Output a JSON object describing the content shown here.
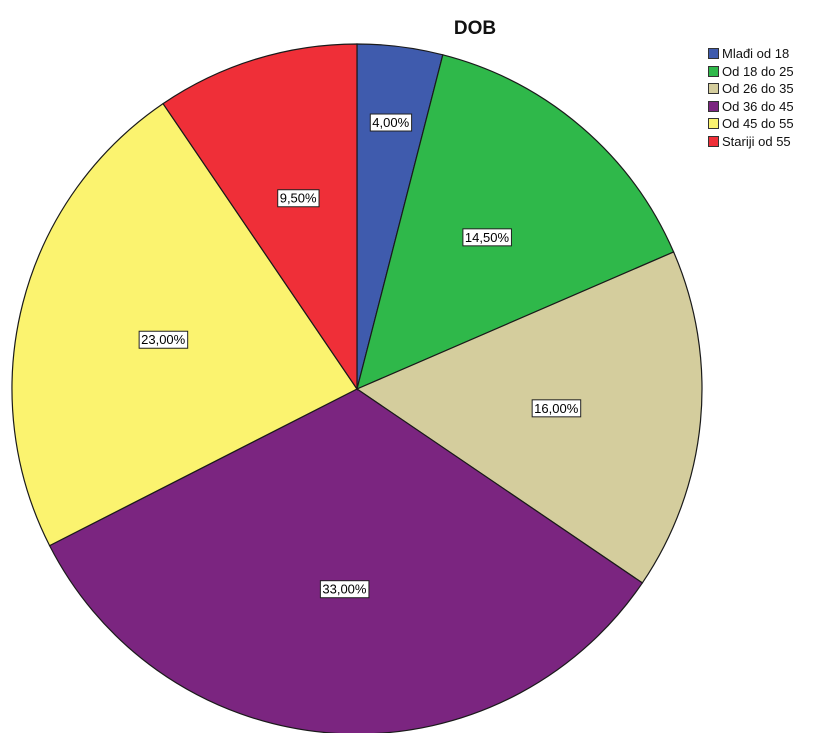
{
  "chart_data": {
    "type": "pie",
    "title": "DOB",
    "categories": [
      "Mlađi od 18",
      "Od 18 do 25",
      "Od 26 do 35",
      "Od 36 do 45",
      "Od 45 do 55",
      "Stariji od 55"
    ],
    "values": [
      4.0,
      14.5,
      16.0,
      33.0,
      23.0,
      9.5
    ],
    "value_labels": [
      "4,00%",
      "14,50%",
      "16,00%",
      "33,00%",
      "23,00%",
      "9,50%"
    ],
    "colors": [
      "#3f5bad",
      "#2fb84a",
      "#d4cd9d",
      "#7b2580",
      "#fbf36f",
      "#ef2f38"
    ],
    "start_angle": "12 o'clock",
    "direction": "clockwise",
    "legend_position": "top-right"
  }
}
